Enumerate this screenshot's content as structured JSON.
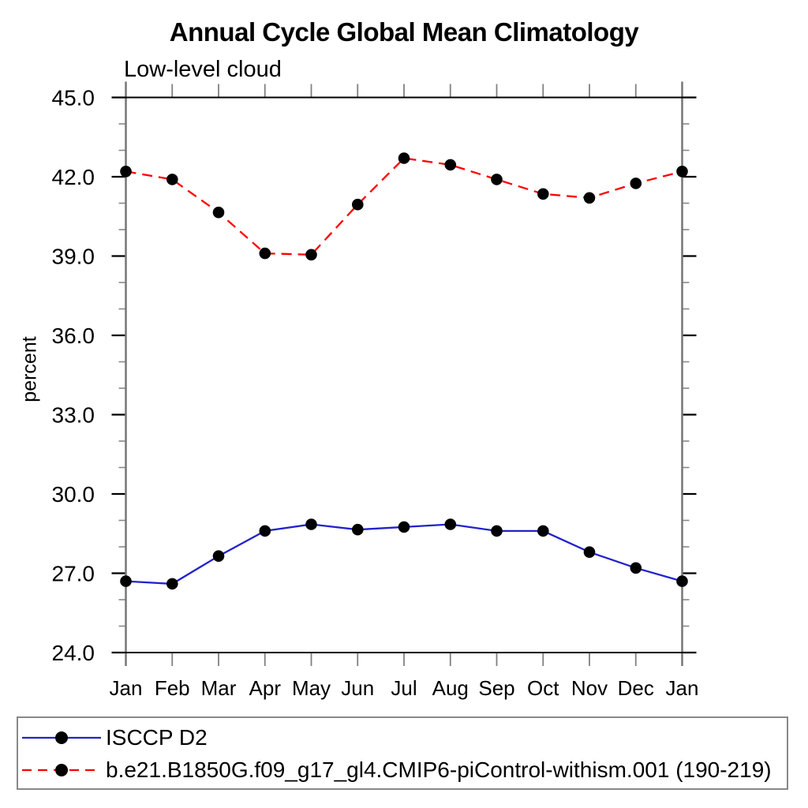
{
  "chart_data": {
    "type": "line",
    "title": "Annual Cycle Global Mean Climatology",
    "subtitle": "Low-level cloud",
    "ylabel": "percent",
    "xlabel": "",
    "categories": [
      "Jan",
      "Feb",
      "Mar",
      "Apr",
      "May",
      "Jun",
      "Jul",
      "Aug",
      "Sep",
      "Oct",
      "Nov",
      "Dec",
      "Jan"
    ],
    "ylim": [
      24.0,
      45.0
    ],
    "ytick_major_step": 3.0,
    "ytick_minor_step": 1.0,
    "ytick_major_labels": [
      "45.0",
      "42.0",
      "39.0",
      "36.0",
      "33.0",
      "30.0",
      "27.0",
      "24.0"
    ],
    "grid": false,
    "legend_position": "bottom-left-box",
    "marker": "filled-circle",
    "marker_color": "#000000",
    "series": [
      {
        "name": "ISCCP D2",
        "color": "#2222cc",
        "line_style": "solid",
        "values": [
          26.7,
          26.6,
          27.65,
          28.6,
          28.85,
          28.65,
          28.75,
          28.85,
          28.6,
          28.6,
          27.8,
          27.2,
          26.7
        ]
      },
      {
        "name": "b.e21.B1850G.f09_g17_gl4.CMIP6-piControl-withism.001 (190-219)",
        "color": "#ff0000",
        "line_style": "dashed",
        "values": [
          42.2,
          41.9,
          40.65,
          39.1,
          39.05,
          40.95,
          42.7,
          42.45,
          41.9,
          41.35,
          41.2,
          41.75,
          42.2
        ]
      }
    ]
  }
}
